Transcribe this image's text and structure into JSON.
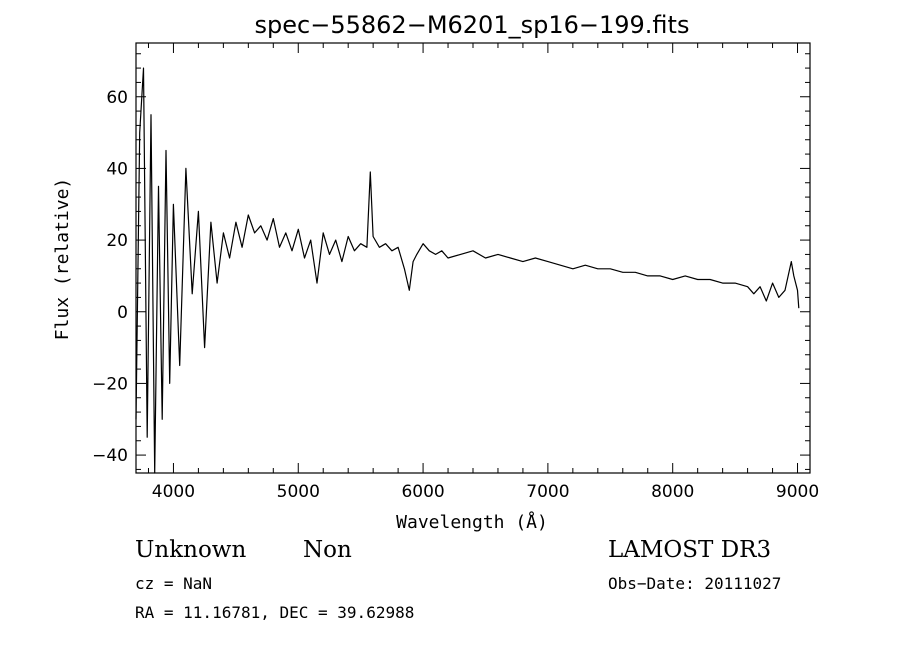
{
  "chart_data": {
    "type": "line",
    "title": "spec−55862−M6201_sp16−199.fits",
    "xlabel": "Wavelength (Å)",
    "ylabel": "Flux (relative)",
    "xlim": [
      3700,
      9100
    ],
    "ylim": [
      -45,
      75
    ],
    "xticks": [
      4000,
      5000,
      6000,
      7000,
      8000,
      9000
    ],
    "yticks": [
      -40,
      -20,
      0,
      20,
      40,
      60
    ],
    "ytick_labels": [
      "−40",
      "−20",
      "0",
      "20",
      "40",
      "60"
    ],
    "x_minor_step": 200,
    "y_minor_step": 4,
    "grid": false,
    "series": [
      {
        "x": [
          3700,
          3730,
          3760,
          3790,
          3820,
          3850,
          3880,
          3910,
          3940,
          3970,
          4000,
          4050,
          4100,
          4150,
          4200,
          4250,
          4300,
          4350,
          4400,
          4450,
          4500,
          4550,
          4600,
          4650,
          4700,
          4750,
          4800,
          4850,
          4900,
          4950,
          5000,
          5050,
          5100,
          5150,
          5200,
          5250,
          5300,
          5350,
          5400,
          5450,
          5500,
          5550,
          5577,
          5600,
          5650,
          5700,
          5750,
          5800,
          5850,
          5890,
          5920,
          5950,
          6000,
          6050,
          6100,
          6150,
          6200,
          6300,
          6400,
          6500,
          6600,
          6700,
          6800,
          6900,
          7000,
          7100,
          7200,
          7300,
          7400,
          7500,
          7600,
          7700,
          7800,
          7900,
          8000,
          8100,
          8200,
          8300,
          8400,
          8500,
          8600,
          8650,
          8700,
          8750,
          8800,
          8850,
          8900,
          8950,
          8970,
          9000,
          9010
        ],
        "y": [
          -30,
          50,
          68,
          -35,
          55,
          -45,
          35,
          -30,
          45,
          -20,
          30,
          -15,
          40,
          5,
          28,
          -10,
          25,
          8,
          22,
          15,
          25,
          18,
          27,
          22,
          24,
          20,
          26,
          18,
          22,
          17,
          23,
          15,
          20,
          8,
          22,
          16,
          20,
          14,
          21,
          17,
          19,
          18,
          39,
          21,
          18,
          19,
          17,
          18,
          12,
          6,
          14,
          16,
          19,
          17,
          16,
          17,
          15,
          16,
          17,
          15,
          16,
          15,
          14,
          15,
          14,
          13,
          12,
          13,
          12,
          12,
          11,
          11,
          10,
          10,
          9,
          10,
          9,
          9,
          8,
          8,
          7,
          5,
          7,
          3,
          8,
          4,
          6,
          14,
          10,
          6,
          1
        ]
      }
    ]
  },
  "info": {
    "object_class": "Unknown",
    "subclass": "Non",
    "cz": "cz = NaN",
    "coords": "RA =  11.16781, DEC =  39.62988",
    "survey": "LAMOST DR3",
    "obs_date": "Obs−Date: 20111027"
  }
}
